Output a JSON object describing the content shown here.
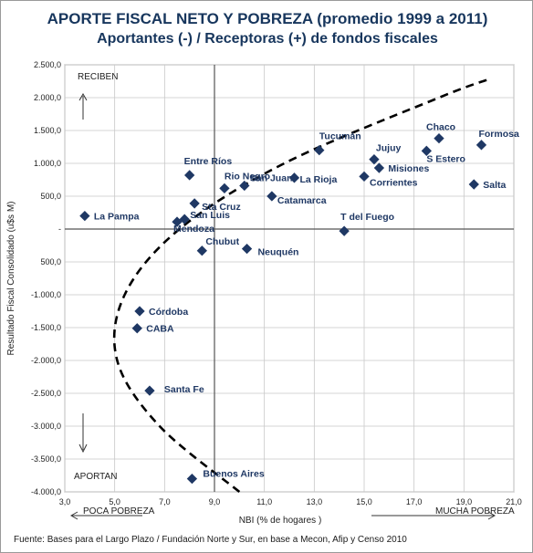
{
  "title": "APORTE FISCAL NETO Y POBREZA (promedio 1999 a 2011)",
  "subtitle": "Aportantes (-) / Receptoras (+) de fondos fiscales",
  "source": "Fuente: Bases para el Largo Plazo / Fundación Norte y Sur, en base a Mecon, Afip y Censo 2010",
  "colors": {
    "title": "#17365d",
    "marker": "#1f3864",
    "label": "#1f3864",
    "grid": "#8c8c8c",
    "trend": "#000000"
  },
  "chart_data": {
    "type": "scatter",
    "title": "APORTE FISCAL NETO Y POBREZA (promedio 1999 a 2011)",
    "subtitle": "Aportantes (-) / Receptoras (+) de fondos fiscales",
    "xlabel": "NBI (% de hogares )",
    "ylabel": "Resultado Fiscal Consolidado (u$s M)",
    "xlim": [
      3,
      21
    ],
    "ylim": [
      -4000,
      2500
    ],
    "x_ticks": [
      3,
      5,
      7,
      9,
      11,
      13,
      15,
      17,
      19,
      21
    ],
    "x_tick_labels": [
      "3,0",
      "5,0",
      "7,0",
      "9,0",
      "11,0",
      "13,0",
      "15,0",
      "17,0",
      "19,0",
      "21,0"
    ],
    "y_ticks": [
      2500,
      2000,
      1500,
      1000,
      500,
      0,
      -500,
      -1000,
      -1500,
      -2000,
      -2500,
      -3000,
      -3500,
      -4000
    ],
    "y_tick_labels": [
      "2.500,0",
      "2.000,0",
      "1.500,0",
      "1.000,0",
      "500,0",
      "-",
      "500,0",
      "-1.000,0",
      "-1.500,0",
      "-2.000,0",
      "-2.500,0",
      "-3.000,0",
      "-3.500,0",
      "-4.000,0"
    ],
    "grid": true,
    "reference_lines": {
      "x": 9,
      "y": 0
    },
    "annotations": {
      "top": "RECIBEN",
      "bottom": "APORTAN",
      "left_arrow": "POCA POBREZA",
      "right_arrow": "MUCHA POBREZA"
    },
    "points": [
      {
        "name": "La Pampa",
        "x": 3.8,
        "y": 200
      },
      {
        "name": "Entre Ríos",
        "x": 8.0,
        "y": 820
      },
      {
        "name": "Rio Negro",
        "x": 9.4,
        "y": 620
      },
      {
        "name": "San Juan",
        "x": 10.2,
        "y": 660
      },
      {
        "name": "La Rioja",
        "x": 12.2,
        "y": 780
      },
      {
        "name": "Tucumán",
        "x": 13.2,
        "y": 1200
      },
      {
        "name": "Catamarca",
        "x": 11.3,
        "y": 500
      },
      {
        "name": "Sta Cruz",
        "x": 8.2,
        "y": 390
      },
      {
        "name": "San Luis",
        "x": 7.8,
        "y": 150
      },
      {
        "name": "Mendoza",
        "x": 7.5,
        "y": 110
      },
      {
        "name": "Chubut",
        "x": 8.5,
        "y": -330
      },
      {
        "name": "Neuquén",
        "x": 10.3,
        "y": -300
      },
      {
        "name": "Jujuy",
        "x": 15.4,
        "y": 1060
      },
      {
        "name": "Misiones",
        "x": 15.6,
        "y": 930
      },
      {
        "name": "Corrientes",
        "x": 15.0,
        "y": 800
      },
      {
        "name": "T del Fuego",
        "x": 14.2,
        "y": -30
      },
      {
        "name": "Chaco",
        "x": 18.0,
        "y": 1380
      },
      {
        "name": "Formosa",
        "x": 19.7,
        "y": 1280
      },
      {
        "name": "S Estero",
        "x": 17.5,
        "y": 1190
      },
      {
        "name": "Salta",
        "x": 19.4,
        "y": 680
      },
      {
        "name": "Córdoba",
        "x": 6.0,
        "y": -1250
      },
      {
        "name": "CABA",
        "x": 5.9,
        "y": -1510
      },
      {
        "name": "Santa Fe",
        "x": 6.4,
        "y": -2460
      },
      {
        "name": "Buenos Aires",
        "x": 8.1,
        "y": -3800
      }
    ],
    "trend": {
      "type": "quadratic-in-y",
      "points": [
        {
          "x": 10.0,
          "y": -4000
        },
        {
          "x": 6.8,
          "y": -3000
        },
        {
          "x": 5.1,
          "y": -2000
        },
        {
          "x": 5.4,
          "y": -1000
        },
        {
          "x": 7.6,
          "y": 0
        },
        {
          "x": 11.8,
          "y": 1000
        },
        {
          "x": 18.0,
          "y": 2000
        },
        {
          "x": 20.0,
          "y": 2280
        }
      ]
    }
  }
}
